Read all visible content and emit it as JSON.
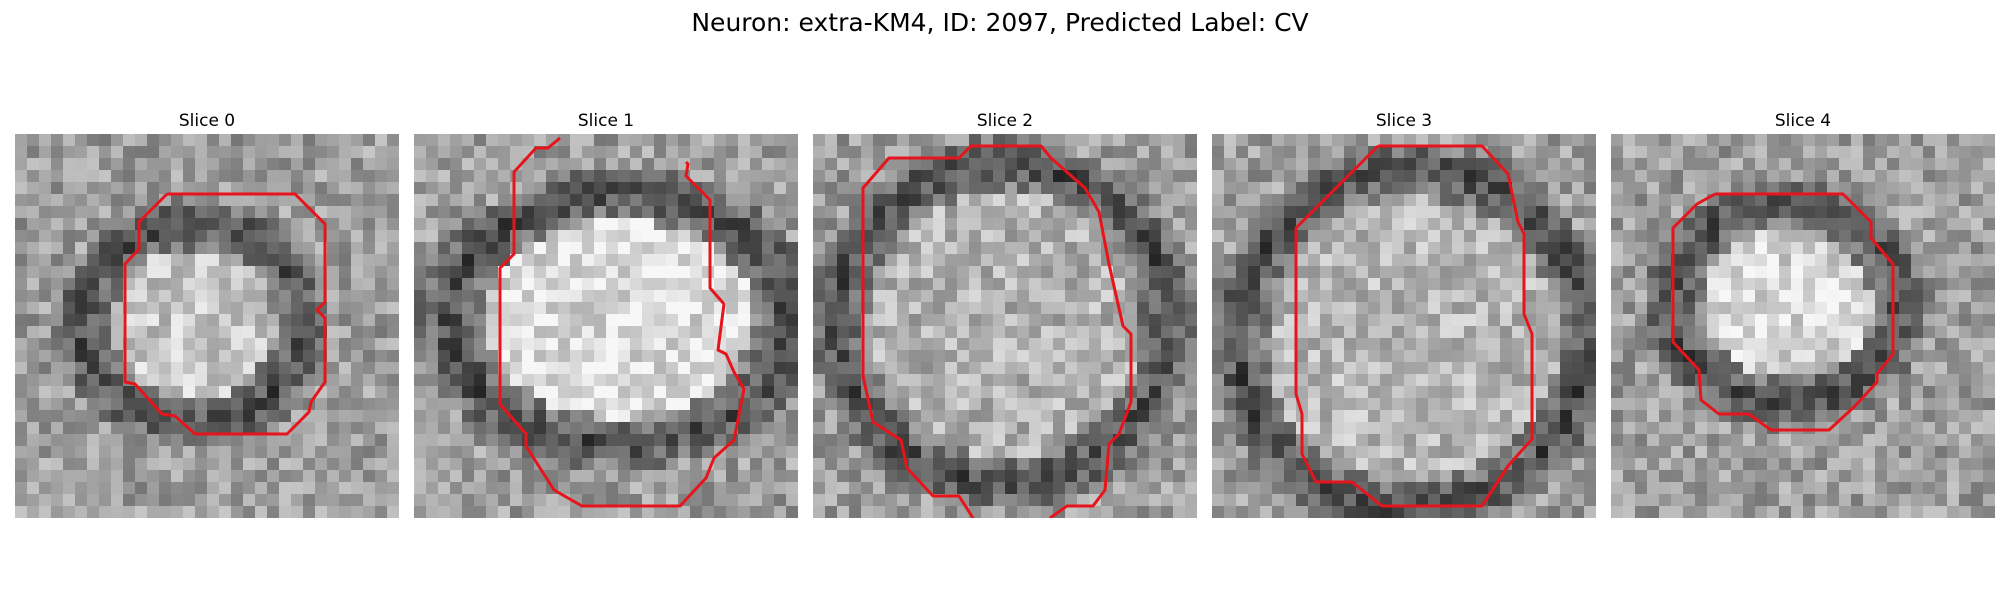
{
  "figure": {
    "title": "Neuron: extra-KM4, ID: 2097, Predicted Label: CV"
  },
  "contour_color": "#e8141b",
  "panels": [
    {
      "title": "Slice 0",
      "contour": "ring-lower-center"
    },
    {
      "title": "Slice 1",
      "contour": "open-top"
    },
    {
      "title": "Slice 2",
      "contour": "open-bottom"
    },
    {
      "title": "Slice 3",
      "contour": "closed-octagon"
    },
    {
      "title": "Slice 4",
      "contour": "closed-octagon-small"
    }
  ]
}
